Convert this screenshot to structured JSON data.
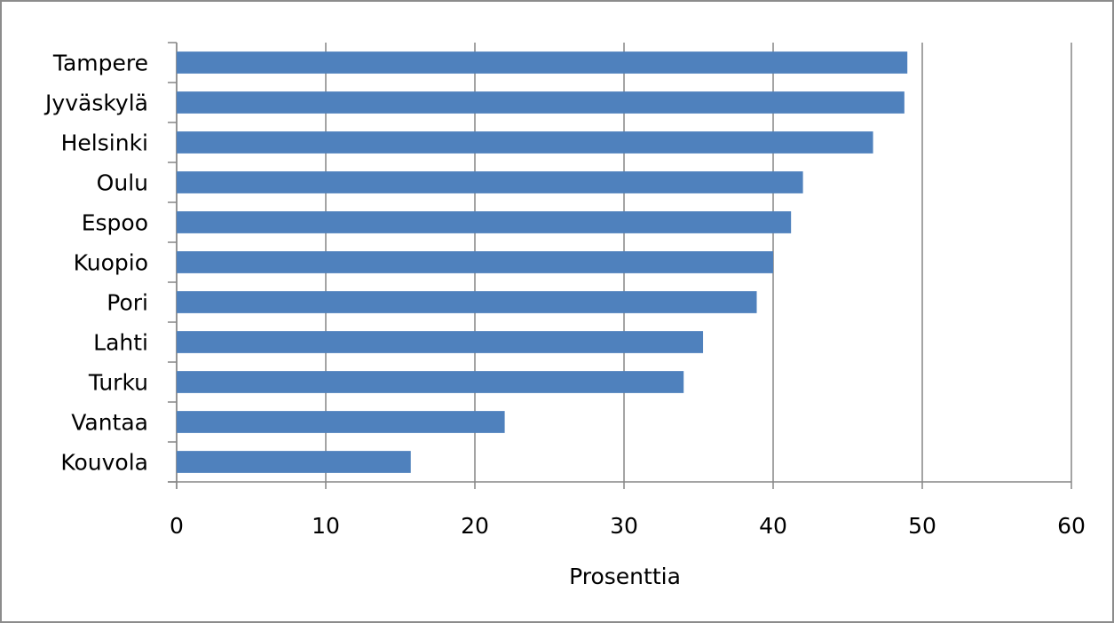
{
  "chart_data": {
    "type": "bar",
    "orientation": "horizontal",
    "categories": [
      "Tampere",
      "Jyväskylä",
      "Helsinki",
      "Oulu",
      "Espoo",
      "Kuopio",
      "Pori",
      "Lahti",
      "Turku",
      "Vantaa",
      "Kouvola"
    ],
    "values": [
      49.0,
      48.8,
      46.7,
      42.0,
      41.2,
      40.0,
      38.9,
      35.3,
      34.0,
      22.0,
      15.7
    ],
    "xlabel": "Prosenttia",
    "ylabel": "",
    "xlim": [
      0,
      60
    ],
    "xticks": [
      "0",
      "10",
      "20",
      "30",
      "40",
      "50",
      "60"
    ],
    "grid": "vertical",
    "legend": "none",
    "bar_color": "#4f81bd"
  }
}
